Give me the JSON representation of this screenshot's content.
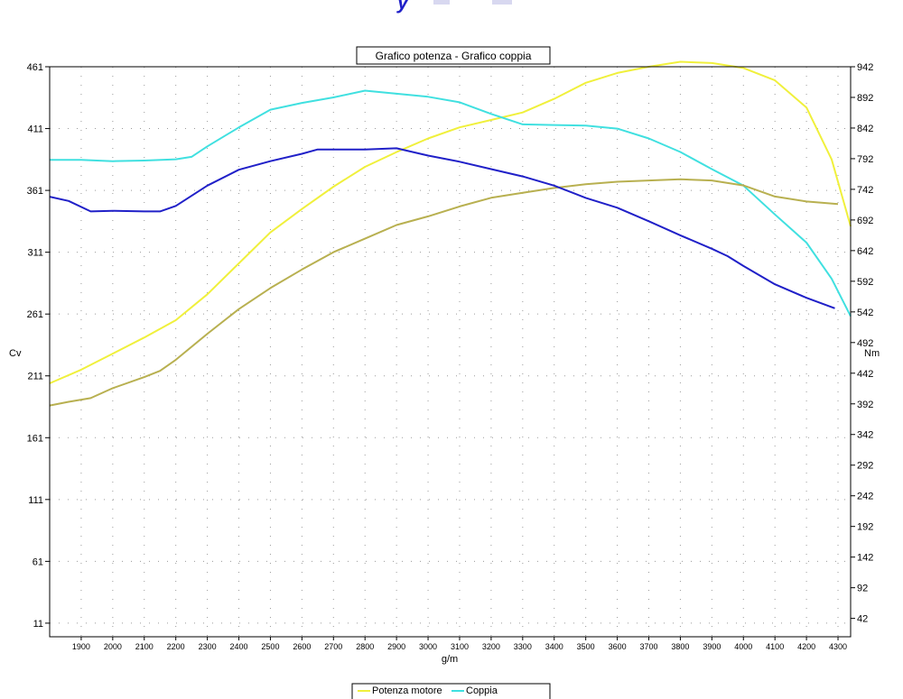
{
  "chart_data": {
    "type": "line",
    "title": "Grafico potenza - Grafico coppia",
    "xlabel": "g/m",
    "ylabel_left": "Cv",
    "ylabel_right": "Nm",
    "x_ticks": [
      1900,
      2000,
      2100,
      2200,
      2300,
      2400,
      2500,
      2600,
      2700,
      2800,
      2900,
      3000,
      3100,
      3200,
      3300,
      3400,
      3500,
      3600,
      3700,
      3800,
      3900,
      4000,
      4100,
      4200,
      4300
    ],
    "y_left_ticks": [
      11,
      61,
      111,
      161,
      211,
      261,
      311,
      361,
      411,
      461
    ],
    "y_right_ticks": [
      42,
      92,
      142,
      192,
      242,
      292,
      342,
      392,
      442,
      492,
      542,
      592,
      642,
      692,
      742,
      792,
      842,
      892,
      942
    ],
    "xlim": [
      1800,
      4340
    ],
    "ylim_left": [
      0,
      461
    ],
    "ylim_right": [
      12,
      942
    ],
    "grid": true,
    "series": [
      {
        "name": "Potenza motore",
        "axis": "left",
        "color": "#f0f03c",
        "points": [
          [
            1800,
            205
          ],
          [
            1900,
            216
          ],
          [
            2000,
            229
          ],
          [
            2100,
            242
          ],
          [
            2200,
            256
          ],
          [
            2300,
            277
          ],
          [
            2400,
            302
          ],
          [
            2500,
            327
          ],
          [
            2600,
            346
          ],
          [
            2700,
            364
          ],
          [
            2800,
            380
          ],
          [
            2900,
            392
          ],
          [
            3000,
            403
          ],
          [
            3100,
            412
          ],
          [
            3200,
            418
          ],
          [
            3300,
            424
          ],
          [
            3400,
            435
          ],
          [
            3500,
            448
          ],
          [
            3600,
            456
          ],
          [
            3700,
            461
          ],
          [
            3800,
            465
          ],
          [
            3900,
            464
          ],
          [
            4000,
            460
          ],
          [
            4100,
            450
          ],
          [
            4200,
            428
          ],
          [
            4280,
            386
          ],
          [
            4340,
            332
          ]
        ]
      },
      {
        "name": "Coppia",
        "axis": "right",
        "color": "#40e0e0",
        "points": [
          [
            1800,
            790
          ],
          [
            1900,
            790
          ],
          [
            2000,
            788
          ],
          [
            2100,
            789
          ],
          [
            2200,
            791
          ],
          [
            2250,
            795
          ],
          [
            2300,
            812
          ],
          [
            2400,
            843
          ],
          [
            2500,
            872
          ],
          [
            2600,
            883
          ],
          [
            2700,
            892
          ],
          [
            2800,
            903
          ],
          [
            2900,
            898
          ],
          [
            3000,
            893
          ],
          [
            3100,
            884
          ],
          [
            3200,
            865
          ],
          [
            3300,
            848
          ],
          [
            3400,
            847
          ],
          [
            3500,
            846
          ],
          [
            3600,
            841
          ],
          [
            3700,
            825
          ],
          [
            3800,
            803
          ],
          [
            3900,
            775
          ],
          [
            4000,
            748
          ],
          [
            4100,
            701
          ],
          [
            4200,
            655
          ],
          [
            4280,
            596
          ],
          [
            4340,
            535
          ]
        ]
      },
      {
        "name": "Potenza motore",
        "axis": "left",
        "color": "#b8b050",
        "points": [
          [
            1800,
            187
          ],
          [
            1860,
            190
          ],
          [
            1930,
            193
          ],
          [
            2000,
            201
          ],
          [
            2100,
            210
          ],
          [
            2150,
            215
          ],
          [
            2200,
            224
          ],
          [
            2300,
            245
          ],
          [
            2400,
            265
          ],
          [
            2500,
            282
          ],
          [
            2600,
            297
          ],
          [
            2700,
            311
          ],
          [
            2800,
            322
          ],
          [
            2900,
            333
          ],
          [
            3000,
            340
          ],
          [
            3100,
            348
          ],
          [
            3200,
            355
          ],
          [
            3300,
            359
          ],
          [
            3400,
            363
          ],
          [
            3500,
            366
          ],
          [
            3600,
            368
          ],
          [
            3700,
            369
          ],
          [
            3800,
            370
          ],
          [
            3900,
            369
          ],
          [
            4000,
            365
          ],
          [
            4100,
            356
          ],
          [
            4200,
            352
          ],
          [
            4300,
            350
          ]
        ]
      },
      {
        "name": "Coppia",
        "axis": "right",
        "color": "#2020c8",
        "points": [
          [
            1800,
            730
          ],
          [
            1860,
            723
          ],
          [
            1930,
            706
          ],
          [
            2000,
            707
          ],
          [
            2100,
            706
          ],
          [
            2150,
            706
          ],
          [
            2200,
            715
          ],
          [
            2300,
            748
          ],
          [
            2400,
            774
          ],
          [
            2500,
            788
          ],
          [
            2600,
            800
          ],
          [
            2650,
            807
          ],
          [
            2800,
            807
          ],
          [
            2900,
            809
          ],
          [
            3000,
            797
          ],
          [
            3100,
            787
          ],
          [
            3200,
            775
          ],
          [
            3300,
            763
          ],
          [
            3400,
            748
          ],
          [
            3500,
            728
          ],
          [
            3600,
            712
          ],
          [
            3700,
            690
          ],
          [
            3800,
            667
          ],
          [
            3900,
            645
          ],
          [
            3950,
            633
          ],
          [
            4000,
            617
          ],
          [
            4100,
            587
          ],
          [
            4200,
            565
          ],
          [
            4290,
            548
          ]
        ]
      }
    ],
    "legend": {
      "position": "bottom-center",
      "entries": [
        {
          "label": "Potenza motore",
          "color": "#f0f03c"
        },
        {
          "label": "Coppia",
          "color": "#40e0e0"
        }
      ]
    }
  }
}
